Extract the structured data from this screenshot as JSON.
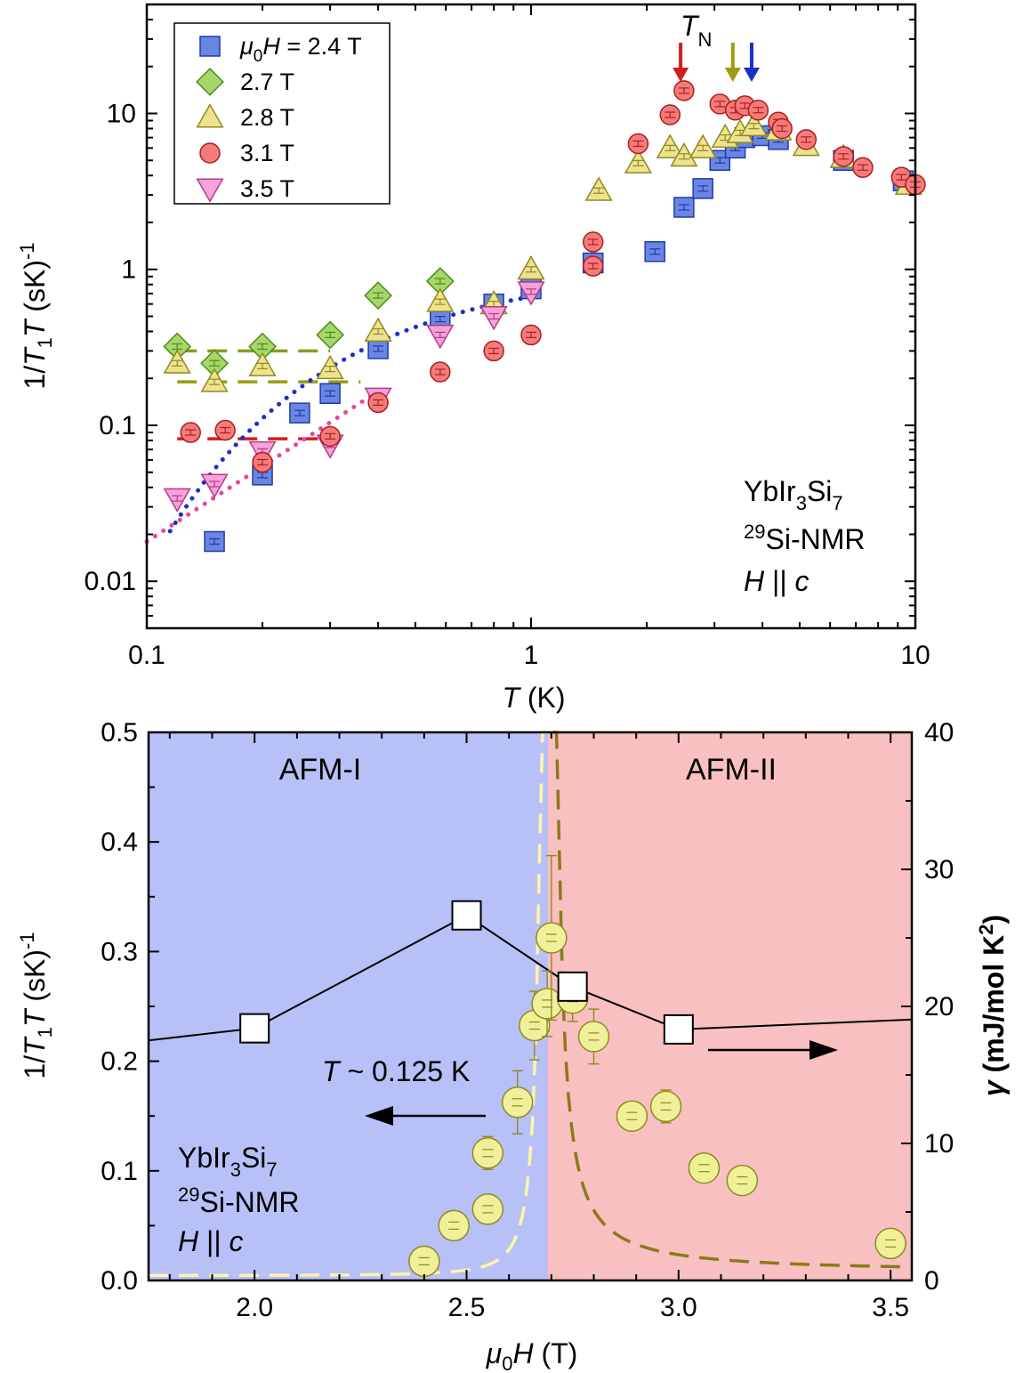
{
  "chart_data": [
    {
      "panel": "top",
      "type": "scatter",
      "xscale": "log",
      "yscale": "log",
      "xlim": [
        0.1,
        10
      ],
      "ylim": [
        0.005,
        50
      ],
      "xlabel": {
        "main": "T",
        "rest": " (K)"
      },
      "ylabel": {
        "pre": "1/",
        "var": "T",
        "sub": "1",
        "var2": "T",
        "rest": " (sK)",
        "sup": "-1"
      },
      "xticks": [
        {
          "value": 0.1,
          "label": "0.1"
        },
        {
          "value": 1,
          "label": "1"
        },
        {
          "value": 10,
          "label": "10"
        }
      ],
      "yticks": [
        {
          "value": 0.01,
          "label": "0.01"
        },
        {
          "value": 0.1,
          "label": "0.1"
        },
        {
          "value": 1,
          "label": "1"
        },
        {
          "value": 10,
          "label": "10"
        }
      ],
      "legend_position": "top-left",
      "legend": [
        {
          "pre": "μ",
          "sub": "0",
          "var": "H",
          "rest": " = 2.4 T"
        },
        {
          "text": "2.7 T"
        },
        {
          "text": "2.8 T"
        },
        {
          "text": "3.1 T"
        },
        {
          "text": "3.5 T"
        }
      ],
      "sample": {
        "line1": "YbIr",
        "sub1": "3",
        "mid1": "Si",
        "sub2": "7",
        "sup": "29",
        "line2": "Si-NMR",
        "var": "H",
        "line3": " || ",
        "var2": "c"
      },
      "tn_label": {
        "var": "T",
        "sub": "N"
      },
      "tn_arrows": [
        {
          "T": 2.45,
          "color": "#d41c1c"
        },
        {
          "T": 3.35,
          "color": "#9c9c12"
        },
        {
          "T": 3.75,
          "color": "#1a2fc8"
        }
      ],
      "series": [
        {
          "shape": "square",
          "fill": "#6b86e0",
          "stroke": "#1e3ab0",
          "points": [
            [
              0.15,
              0.018
            ],
            [
              0.2,
              0.048
            ],
            [
              0.25,
              0.12
            ],
            [
              0.3,
              0.16
            ],
            [
              0.4,
              0.31
            ],
            [
              0.58,
              0.48
            ],
            [
              0.8,
              0.6
            ],
            [
              1.0,
              0.75
            ],
            [
              1.45,
              1.1
            ],
            [
              2.1,
              1.3
            ],
            [
              2.5,
              2.5
            ],
            [
              2.8,
              3.3
            ],
            [
              3.1,
              5.0
            ],
            [
              3.4,
              6.0
            ],
            [
              3.6,
              7.0
            ],
            [
              4.0,
              7.2
            ],
            [
              4.4,
              6.8
            ],
            [
              6.5,
              5.0
            ],
            [
              9.3,
              3.7
            ]
          ]
        },
        {
          "shape": "diamond",
          "fill": "#a7d66b",
          "stroke": "#4e8a1c",
          "points": [
            [
              0.12,
              0.32
            ],
            [
              0.15,
              0.25
            ],
            [
              0.2,
              0.32
            ],
            [
              0.3,
              0.38
            ],
            [
              0.4,
              0.68
            ],
            [
              0.58,
              0.84
            ]
          ]
        },
        {
          "shape": "triangle",
          "fill": "#efe28f",
          "stroke": "#8f8a1f",
          "points": [
            [
              0.12,
              0.25
            ],
            [
              0.15,
              0.19
            ],
            [
              0.2,
              0.24
            ],
            [
              0.3,
              0.23
            ],
            [
              0.4,
              0.4
            ],
            [
              0.58,
              0.62
            ],
            [
              0.8,
              0.6
            ],
            [
              1.0,
              1.0
            ],
            [
              1.5,
              3.2
            ],
            [
              1.9,
              4.8
            ],
            [
              2.3,
              6.0
            ],
            [
              2.5,
              5.3
            ],
            [
              2.8,
              6.0
            ],
            [
              3.2,
              7.0
            ],
            [
              3.5,
              7.5
            ],
            [
              3.8,
              8.3
            ],
            [
              4.4,
              7.8
            ],
            [
              5.2,
              6.2
            ],
            [
              6.5,
              5.2
            ],
            [
              9.6,
              3.5
            ]
          ]
        },
        {
          "shape": "circle",
          "fill": "#f57b7b",
          "stroke": "#a81f1f",
          "points": [
            [
              0.13,
              0.09
            ],
            [
              0.16,
              0.093
            ],
            [
              0.2,
              0.058
            ],
            [
              0.3,
              0.085
            ],
            [
              0.4,
              0.14
            ],
            [
              0.58,
              0.22
            ],
            [
              0.8,
              0.3
            ],
            [
              1.0,
              0.38
            ],
            [
              1.45,
              1.5
            ],
            [
              1.45,
              1.05
            ],
            [
              1.9,
              6.4
            ],
            [
              2.3,
              9.8
            ],
            [
              2.5,
              14.0
            ],
            [
              3.1,
              11.5
            ],
            [
              3.4,
              10.5
            ],
            [
              3.6,
              11.2
            ],
            [
              3.9,
              10.5
            ],
            [
              4.4,
              8.8
            ],
            [
              4.5,
              8.0
            ],
            [
              5.2,
              6.8
            ],
            [
              6.5,
              5.3
            ],
            [
              7.3,
              4.5
            ],
            [
              9.2,
              3.9
            ],
            [
              10.0,
              3.5
            ]
          ]
        },
        {
          "shape": "down-triangle",
          "fill": "#f6a3d8",
          "stroke": "#b4398c",
          "points": [
            [
              0.12,
              0.034
            ],
            [
              0.15,
              0.042
            ],
            [
              0.2,
              0.068
            ],
            [
              0.3,
              0.075
            ],
            [
              0.4,
              0.15
            ],
            [
              0.58,
              0.38
            ],
            [
              0.8,
              0.5
            ],
            [
              1.0,
              0.72
            ]
          ]
        }
      ],
      "fits": [
        {
          "style": "dash",
          "color": "#8a9c1e",
          "y": 0.3,
          "x": [
            0.12,
            0.3
          ]
        },
        {
          "style": "dash",
          "color": "#9c9c12",
          "y": 0.19,
          "x": [
            0.12,
            0.36
          ]
        },
        {
          "style": "dash",
          "color": "#d41c1c",
          "y": 0.082,
          "x": [
            0.12,
            0.32
          ]
        },
        {
          "style": "dot",
          "color": "#1a2fc8",
          "curve": "gapped",
          "x": [
            0.115,
            1.0
          ]
        },
        {
          "style": "dot",
          "color": "#e8469e",
          "curve": "power",
          "x": [
            0.1,
            0.4
          ]
        }
      ]
    },
    {
      "panel": "bottom",
      "type": "scatter",
      "xlim": [
        1.75,
        3.55
      ],
      "ylim": [
        0,
        0.5
      ],
      "y2lim": [
        0,
        40
      ],
      "xlabel": {
        "pre": "μ",
        "sub": "0",
        "var": "H",
        "rest": " (T)"
      },
      "ylabel": {
        "pre": "1/",
        "var": "T",
        "sub": "1",
        "var2": "T",
        "rest": " (sK)",
        "sup": "-1"
      },
      "y2label": {
        "var": "γ",
        "rest": " (mJ/mol K",
        "sup": "2",
        "end": ")"
      },
      "xticks": [
        {
          "value": 2.0,
          "label": "2.0"
        },
        {
          "value": 2.5,
          "label": "2.5"
        },
        {
          "value": 3.0,
          "label": "3.0"
        },
        {
          "value": 3.5,
          "label": "3.5"
        }
      ],
      "yticks": [
        {
          "value": 0.0,
          "label": "0.0"
        },
        {
          "value": 0.1,
          "label": "0.1"
        },
        {
          "value": 0.2,
          "label": "0.2"
        },
        {
          "value": 0.3,
          "label": "0.3"
        },
        {
          "value": 0.4,
          "label": "0.4"
        },
        {
          "value": 0.5,
          "label": "0.5"
        }
      ],
      "y2ticks": [
        {
          "value": 0,
          "label": "0"
        },
        {
          "value": 10,
          "label": "10"
        },
        {
          "value": 20,
          "label": "20"
        },
        {
          "value": 30,
          "label": "30"
        },
        {
          "value": 40,
          "label": "40"
        }
      ],
      "regions": [
        {
          "label": "AFM-I",
          "x": [
            1.75,
            2.7
          ],
          "color": "#b8c0f8"
        },
        {
          "label": "AFM-II",
          "x": [
            2.7,
            3.55
          ],
          "color": "#f8c0c0"
        }
      ],
      "temperature_label": {
        "var": "T",
        "rest": " ~ 0.125 K"
      },
      "sample": {
        "line1": "YbIr",
        "sub1": "3",
        "mid1": "Si",
        "sub2": "7",
        "sup": "29",
        "line2": "Si-NMR",
        "var": "H",
        "line3": " || ",
        "var2": "c"
      },
      "series": [
        {
          "name_axis": "left",
          "shape": "square",
          "fill": "#ffffff",
          "stroke": "#000000",
          "x": [
            1.75,
            2.0,
            2.5,
            2.75,
            3.0,
            3.55
          ],
          "y": [
            0.219,
            0.23,
            0.333,
            0.268,
            0.229,
            0.238
          ]
        },
        {
          "name_axis": "right",
          "shape": "circle",
          "fill": "#f0f09a",
          "stroke": "#8f8a1f",
          "x": [
            2.4,
            2.47,
            2.55,
            2.55,
            2.62,
            2.66,
            2.69,
            2.7,
            2.75,
            2.8,
            2.89,
            2.97,
            3.06,
            3.15,
            3.5
          ],
          "y": [
            1.4,
            4.0,
            5.2,
            9.3,
            13.0,
            18.6,
            20.2,
            25.0,
            20.6,
            17.8,
            12.0,
            12.7,
            8.2,
            7.3,
            2.7
          ],
          "err": [
            0.7,
            0.8,
            0.7,
            1.2,
            2.3,
            2.5,
            2.4,
            6.0,
            1.7,
            2.0,
            0.6,
            1.2,
            0.8,
            0.6,
            0.7
          ]
        }
      ],
      "fits": [
        {
          "style": "dash",
          "color": "#fff4a8",
          "side": "left"
        },
        {
          "style": "dash",
          "color": "#8b7a1a",
          "side": "right"
        }
      ]
    }
  ]
}
